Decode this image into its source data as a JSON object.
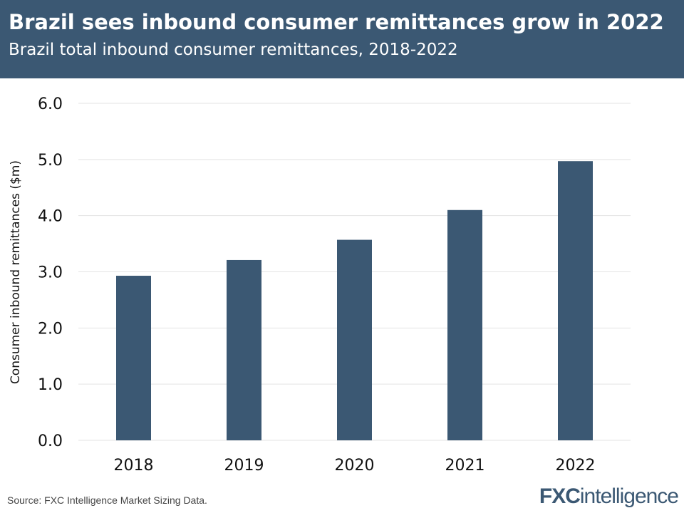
{
  "header": {
    "title": "Brazil sees inbound consumer remittances grow in 2022",
    "subtitle": "Brazil total inbound consumer remittances, 2018-2022"
  },
  "chart_data": {
    "type": "bar",
    "title": "Brazil sees inbound consumer remittances grow in 2022",
    "subtitle": "Brazil total inbound consumer remittances, 2018-2022",
    "categories": [
      "2018",
      "2019",
      "2020",
      "2021",
      "2022"
    ],
    "values": [
      2.93,
      3.21,
      3.57,
      4.1,
      4.97
    ],
    "xlabel": "",
    "ylabel": "Consumer inbound remittances ($m)",
    "ylim": [
      0,
      6
    ],
    "yticks": [
      "0.0",
      "1.0",
      "2.0",
      "3.0",
      "4.0",
      "5.0",
      "6.0"
    ],
    "grid": true,
    "bar_color": "#3b5873"
  },
  "footer": {
    "source": "Source: FXC Intelligence Market Sizing Data.",
    "logo": "FXCintelligence"
  }
}
